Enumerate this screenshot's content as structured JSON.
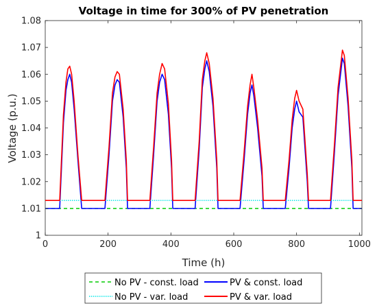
{
  "chart_data": {
    "type": "line",
    "title": "Voltage in time for 300% of PV penetration",
    "xlabel": "Time (h)",
    "ylabel": "Voltage (p.u.)",
    "xlim": [
      0,
      1008
    ],
    "ylim": [
      1.0,
      1.08
    ],
    "xticks": [
      0,
      200,
      400,
      600,
      800,
      1000
    ],
    "yticks": [
      1.0,
      1.01,
      1.02,
      1.03,
      1.04,
      1.05,
      1.06,
      1.07,
      1.08
    ],
    "xtick_labels": [
      "0",
      "200",
      "400",
      "600",
      "800",
      "1000"
    ],
    "ytick_labels": [
      "1",
      "1.01",
      "1.02",
      "1.03",
      "1.04",
      "1.05",
      "1.06",
      "1.07",
      "1.08"
    ],
    "grid": false,
    "legend_position": "below",
    "series": [
      {
        "name": "No PV - const. load",
        "color": "#00cc00",
        "style": "dashed",
        "x": [
          0,
          1008
        ],
        "y": [
          1.01,
          1.01
        ]
      },
      {
        "name": "PV & const. load",
        "color": "#0000ff",
        "style": "solid",
        "x": [
          0,
          46,
          58,
          66,
          72,
          78,
          84,
          92,
          104,
          116,
          190,
          203,
          214,
          222,
          229,
          236,
          248,
          258,
          262,
          333,
          345,
          356,
          364,
          372,
          380,
          392,
          402,
          406,
          477,
          490,
          500,
          508,
          514,
          522,
          534,
          546,
          550,
          620,
          633,
          644,
          652,
          658,
          664,
          676,
          690,
          694,
          764,
          776,
          786,
          794,
          800,
          808,
          820,
          834,
          838,
          908,
          920,
          932,
          940,
          946,
          952,
          964,
          976,
          980,
          1008
        ],
        "y": [
          1.01,
          1.01,
          1.042,
          1.054,
          1.058,
          1.06,
          1.057,
          1.047,
          1.028,
          1.01,
          1.01,
          1.03,
          1.05,
          1.056,
          1.058,
          1.057,
          1.044,
          1.025,
          1.01,
          1.01,
          1.03,
          1.05,
          1.057,
          1.06,
          1.058,
          1.045,
          1.025,
          1.01,
          1.01,
          1.032,
          1.055,
          1.062,
          1.065,
          1.061,
          1.048,
          1.025,
          1.01,
          1.01,
          1.028,
          1.045,
          1.053,
          1.056,
          1.052,
          1.04,
          1.022,
          1.01,
          1.01,
          1.025,
          1.04,
          1.047,
          1.05,
          1.046,
          1.044,
          1.02,
          1.01,
          1.01,
          1.03,
          1.052,
          1.06,
          1.066,
          1.064,
          1.048,
          1.025,
          1.01,
          1.01
        ]
      },
      {
        "name": "No PV - var. load",
        "color": "#00e5e5",
        "style": "dotted",
        "x": [
          0,
          1008
        ],
        "y": [
          1.013,
          1.013
        ]
      },
      {
        "name": "PV & var. load",
        "color": "#ff0000",
        "style": "solid",
        "x": [
          0,
          46,
          58,
          66,
          72,
          78,
          84,
          92,
          104,
          116,
          190,
          203,
          214,
          222,
          229,
          236,
          248,
          258,
          262,
          333,
          345,
          356,
          364,
          372,
          380,
          392,
          402,
          406,
          477,
          490,
          500,
          508,
          514,
          522,
          534,
          546,
          550,
          620,
          633,
          644,
          652,
          658,
          664,
          676,
          690,
          694,
          764,
          776,
          786,
          794,
          800,
          808,
          820,
          834,
          838,
          908,
          920,
          932,
          940,
          946,
          952,
          964,
          976,
          980,
          1008
        ],
        "y": [
          1.013,
          1.013,
          1.045,
          1.057,
          1.062,
          1.063,
          1.06,
          1.05,
          1.03,
          1.013,
          1.013,
          1.033,
          1.053,
          1.059,
          1.061,
          1.06,
          1.047,
          1.028,
          1.013,
          1.013,
          1.033,
          1.053,
          1.06,
          1.064,
          1.062,
          1.049,
          1.028,
          1.013,
          1.013,
          1.035,
          1.058,
          1.065,
          1.068,
          1.064,
          1.051,
          1.028,
          1.013,
          1.013,
          1.031,
          1.048,
          1.056,
          1.06,
          1.055,
          1.043,
          1.025,
          1.013,
          1.013,
          1.028,
          1.043,
          1.051,
          1.054,
          1.05,
          1.047,
          1.023,
          1.013,
          1.013,
          1.033,
          1.055,
          1.063,
          1.069,
          1.067,
          1.051,
          1.028,
          1.013,
          1.013
        ]
      }
    ]
  }
}
